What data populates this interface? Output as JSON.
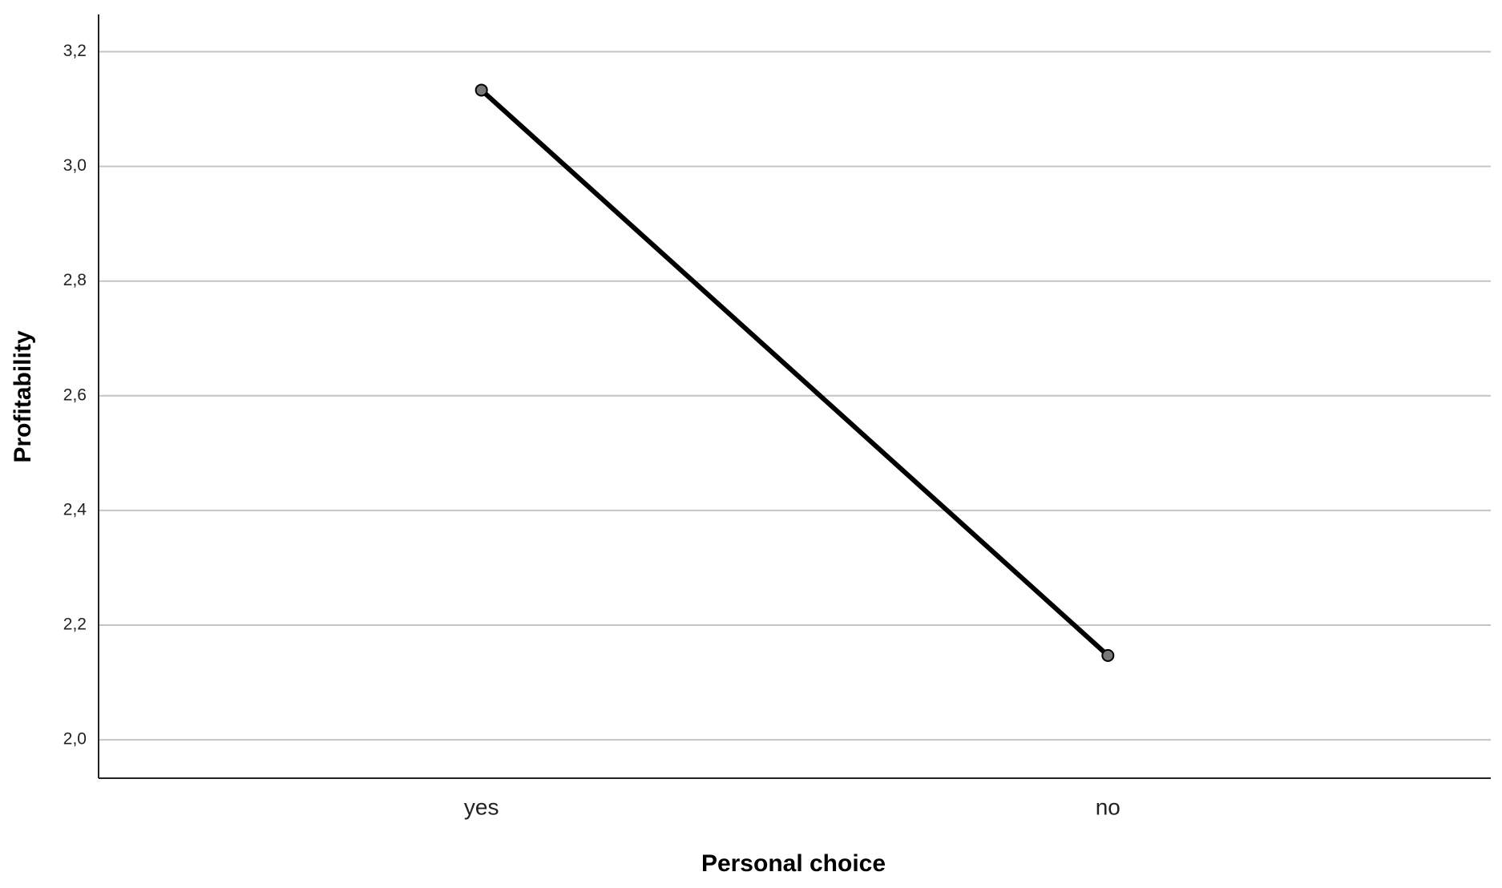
{
  "chart_data": {
    "type": "line",
    "x_label": "Personal choice",
    "y_label": "Profitability",
    "categories": [
      "yes",
      "no"
    ],
    "series": [
      {
        "name": "Profitability",
        "color": "#000000",
        "values": [
          3.133,
          2.147
        ]
      }
    ],
    "ylim": [
      1.933,
      3.265
    ],
    "yticks": [
      {
        "value": 2.0,
        "label": "2,0"
      },
      {
        "value": 2.2,
        "label": "2,2"
      },
      {
        "value": 2.4,
        "label": "2,4"
      },
      {
        "value": 2.6,
        "label": "2,6"
      },
      {
        "value": 2.8,
        "label": "2,8"
      },
      {
        "value": 3.0,
        "label": "3,0"
      },
      {
        "value": 3.2,
        "label": "3,2"
      }
    ],
    "grid": true
  }
}
